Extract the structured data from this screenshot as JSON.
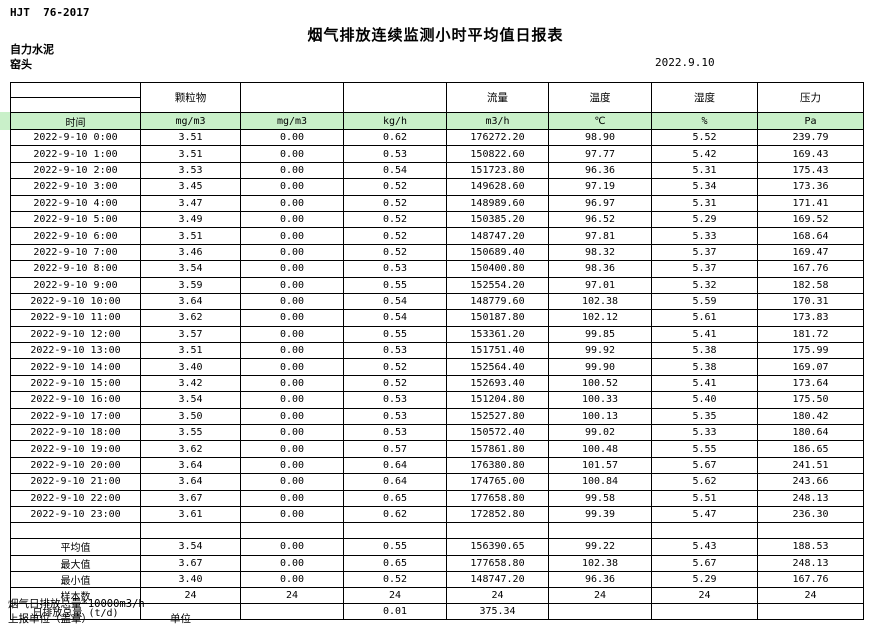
{
  "colors": {
    "header_fill": "#c9f0c9",
    "border": "#000000",
    "text": "#000000"
  },
  "header": {
    "standard_code": "HJT  76-2017",
    "title": "烟气排放连续监测小时平均值日报表",
    "company": "自力水泥",
    "station": "窑头",
    "date": "2022.9.10"
  },
  "table": {
    "group_headers": {
      "particulate": "颗粒物",
      "flow": "流量",
      "temperature": "温度",
      "humidity": "湿度",
      "pressure": "压力"
    },
    "unit_row": {
      "time": "时间",
      "units": [
        "mg/m3",
        "mg/m3",
        "kg/h",
        "m3/h",
        "℃",
        "%",
        "Pa"
      ]
    },
    "rows": [
      {
        "time": "2022-9-10 0:00",
        "values": [
          "3.51",
          "0.00",
          "0.62",
          "176272.20",
          "98.90",
          "5.52",
          "239.79"
        ]
      },
      {
        "time": "2022-9-10 1:00",
        "values": [
          "3.51",
          "0.00",
          "0.53",
          "150822.60",
          "97.77",
          "5.42",
          "169.43"
        ]
      },
      {
        "time": "2022-9-10 2:00",
        "values": [
          "3.53",
          "0.00",
          "0.54",
          "151723.80",
          "96.36",
          "5.31",
          "175.43"
        ]
      },
      {
        "time": "2022-9-10 3:00",
        "values": [
          "3.45",
          "0.00",
          "0.52",
          "149628.60",
          "97.19",
          "5.34",
          "173.36"
        ]
      },
      {
        "time": "2022-9-10 4:00",
        "values": [
          "3.47",
          "0.00",
          "0.52",
          "148989.60",
          "96.97",
          "5.31",
          "171.41"
        ]
      },
      {
        "time": "2022-9-10 5:00",
        "values": [
          "3.49",
          "0.00",
          "0.52",
          "150385.20",
          "96.52",
          "5.29",
          "169.52"
        ]
      },
      {
        "time": "2022-9-10 6:00",
        "values": [
          "3.51",
          "0.00",
          "0.52",
          "148747.20",
          "97.81",
          "5.33",
          "168.64"
        ]
      },
      {
        "time": "2022-9-10 7:00",
        "values": [
          "3.46",
          "0.00",
          "0.52",
          "150689.40",
          "98.32",
          "5.37",
          "169.47"
        ]
      },
      {
        "time": "2022-9-10 8:00",
        "values": [
          "3.54",
          "0.00",
          "0.53",
          "150400.80",
          "98.36",
          "5.37",
          "167.76"
        ]
      },
      {
        "time": "2022-9-10 9:00",
        "values": [
          "3.59",
          "0.00",
          "0.55",
          "152554.20",
          "97.01",
          "5.32",
          "182.58"
        ]
      },
      {
        "time": "2022-9-10 10:00",
        "values": [
          "3.64",
          "0.00",
          "0.54",
          "148779.60",
          "102.38",
          "5.59",
          "170.31"
        ]
      },
      {
        "time": "2022-9-10 11:00",
        "values": [
          "3.62",
          "0.00",
          "0.54",
          "150187.80",
          "102.12",
          "5.61",
          "173.83"
        ]
      },
      {
        "time": "2022-9-10 12:00",
        "values": [
          "3.57",
          "0.00",
          "0.55",
          "153361.20",
          "99.85",
          "5.41",
          "181.72"
        ]
      },
      {
        "time": "2022-9-10 13:00",
        "values": [
          "3.51",
          "0.00",
          "0.53",
          "151751.40",
          "99.92",
          "5.38",
          "175.99"
        ]
      },
      {
        "time": "2022-9-10 14:00",
        "values": [
          "3.40",
          "0.00",
          "0.52",
          "152564.40",
          "99.90",
          "5.38",
          "169.07"
        ]
      },
      {
        "time": "2022-9-10 15:00",
        "values": [
          "3.42",
          "0.00",
          "0.52",
          "152693.40",
          "100.52",
          "5.41",
          "173.64"
        ]
      },
      {
        "time": "2022-9-10 16:00",
        "values": [
          "3.54",
          "0.00",
          "0.53",
          "151204.80",
          "100.33",
          "5.40",
          "175.50"
        ]
      },
      {
        "time": "2022-9-10 17:00",
        "values": [
          "3.50",
          "0.00",
          "0.53",
          "152527.80",
          "100.13",
          "5.35",
          "180.42"
        ]
      },
      {
        "time": "2022-9-10 18:00",
        "values": [
          "3.55",
          "0.00",
          "0.53",
          "150572.40",
          "99.02",
          "5.33",
          "180.64"
        ]
      },
      {
        "time": "2022-9-10 19:00",
        "values": [
          "3.62",
          "0.00",
          "0.57",
          "157861.80",
          "100.48",
          "5.55",
          "186.65"
        ]
      },
      {
        "time": "2022-9-10 20:00",
        "values": [
          "3.64",
          "0.00",
          "0.64",
          "176380.80",
          "101.57",
          "5.67",
          "241.51"
        ]
      },
      {
        "time": "2022-9-10 21:00",
        "values": [
          "3.64",
          "0.00",
          "0.64",
          "174765.00",
          "100.84",
          "5.62",
          "243.66"
        ]
      },
      {
        "time": "2022-9-10 22:00",
        "values": [
          "3.67",
          "0.00",
          "0.65",
          "177658.80",
          "99.58",
          "5.51",
          "248.13"
        ]
      },
      {
        "time": "2022-9-10 23:00",
        "values": [
          "3.61",
          "0.00",
          "0.62",
          "172852.80",
          "99.39",
          "5.47",
          "236.30"
        ]
      }
    ],
    "summary": [
      {
        "label": "平均值",
        "values": [
          "3.54",
          "0.00",
          "0.55",
          "156390.65",
          "99.22",
          "5.43",
          "188.53"
        ]
      },
      {
        "label": "最大值",
        "values": [
          "3.67",
          "0.00",
          "0.65",
          "177658.80",
          "102.38",
          "5.67",
          "248.13"
        ]
      },
      {
        "label": "最小值",
        "values": [
          "3.40",
          "0.00",
          "0.52",
          "148747.20",
          "96.36",
          "5.29",
          "167.76"
        ]
      },
      {
        "label": "样本数",
        "values": [
          "24",
          "24",
          "24",
          "24",
          "24",
          "24",
          "24"
        ]
      },
      {
        "label": "日排放总量 (t/d)",
        "values": [
          "",
          "",
          "0.01",
          "375.34",
          "",
          "",
          ""
        ]
      }
    ]
  },
  "footer": {
    "note": "烟气日排放总量*10000m3/h",
    "report_unit_label": "上报单位（盖章）",
    "unit_label": "单位"
  }
}
